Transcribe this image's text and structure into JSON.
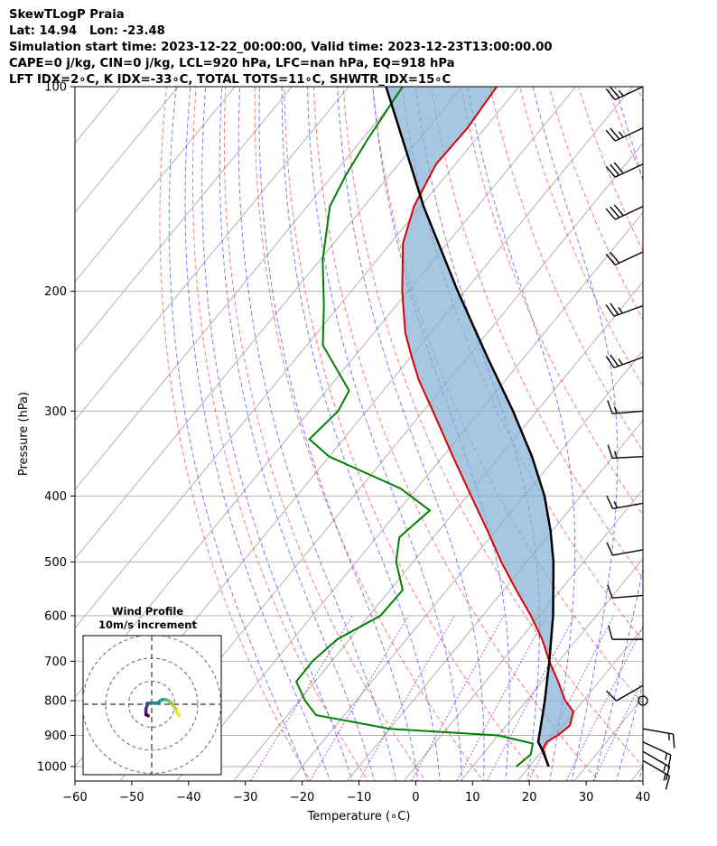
{
  "title": {
    "line1": "SkewTLogP Praia",
    "line2": "Lat: 14.94   Lon: -23.48",
    "line3": "Simulation start time: 2023-12-22_00:00:00, Valid time: 2023-12-23T13:00:00.00",
    "line4": "CAPE=0 j/kg, CIN=0 j/kg, LCL=920 hPa, LFC=nan hPa, EQ=918 hPa",
    "line5": "LFT IDX=2∘C, K IDX=-33∘C, TOTAL TOTS=11∘C, SHWTR_IDX=15∘C"
  },
  "colors": {
    "temperature": "#e00000",
    "dewpoint": "#008000",
    "parcel": "#000000",
    "cape_fill": "#7fafd4",
    "dry_adiabat": "#ff5555",
    "moist_adiabat": "#4455ff",
    "mixing_ratio": "#9933cc",
    "isotherm": "#aaaaaa"
  },
  "chart_data": {
    "type": "skewt",
    "title": "SkewTLogP Praia",
    "xlabel": "Temperature (∘C)",
    "ylabel": "Pressure (hPa)",
    "xlim": [
      -60,
      40
    ],
    "ylim": [
      1050,
      100
    ],
    "x_ticks": [
      "−60",
      "−50",
      "−40",
      "−30",
      "−20",
      "−10",
      "0",
      "10",
      "20",
      "30",
      "40"
    ],
    "x_tick_values": [
      -60,
      -50,
      -40,
      -30,
      -20,
      -10,
      0,
      10,
      20,
      30,
      40
    ],
    "y_ticks": [
      "100",
      "200",
      "300",
      "400",
      "500",
      "600",
      "700",
      "800",
      "900",
      "1000"
    ],
    "y_tick_values": [
      100,
      200,
      300,
      400,
      500,
      600,
      700,
      800,
      900,
      1000
    ],
    "temperature_profile": [
      {
        "p": 1000,
        "t": 23.4
      },
      {
        "p": 960,
        "t": 21.0
      },
      {
        "p": 940,
        "t": 19.8
      },
      {
        "p": 920,
        "t": 19.5
      },
      {
        "p": 900,
        "t": 20.5
      },
      {
        "p": 870,
        "t": 21.2
      },
      {
        "p": 830,
        "t": 19.8
      },
      {
        "p": 800,
        "t": 16.8
      },
      {
        "p": 750,
        "t": 12.8
      },
      {
        "p": 700,
        "t": 8.3
      },
      {
        "p": 650,
        "t": 3.9
      },
      {
        "p": 600,
        "t": -1.5
      },
      {
        "p": 550,
        "t": -7.8
      },
      {
        "p": 500,
        "t": -14.5
      },
      {
        "p": 450,
        "t": -21.4
      },
      {
        "p": 400,
        "t": -29.3
      },
      {
        "p": 350,
        "t": -38.2
      },
      {
        "p": 300,
        "t": -48.3
      },
      {
        "p": 270,
        "t": -55.3
      },
      {
        "p": 250,
        "t": -59.8
      },
      {
        "p": 230,
        "t": -64.5
      },
      {
        "p": 200,
        "t": -71.0
      },
      {
        "p": 170,
        "t": -77.8
      },
      {
        "p": 150,
        "t": -81.2
      },
      {
        "p": 130,
        "t": -83.4
      },
      {
        "p": 115,
        "t": -83.1
      },
      {
        "p": 100,
        "t": -83.9
      }
    ],
    "dewpoint_profile": [
      {
        "p": 1000,
        "t": 17.7
      },
      {
        "p": 960,
        "t": 18.5
      },
      {
        "p": 925,
        "t": 17.3
      },
      {
        "p": 900,
        "t": 10.0
      },
      {
        "p": 880,
        "t": -10.0
      },
      {
        "p": 840,
        "t": -25.0
      },
      {
        "p": 800,
        "t": -29.0
      },
      {
        "p": 750,
        "t": -33.3
      },
      {
        "p": 700,
        "t": -33.4
      },
      {
        "p": 650,
        "t": -32.2
      },
      {
        "p": 600,
        "t": -28.0
      },
      {
        "p": 550,
        "t": -27.8
      },
      {
        "p": 500,
        "t": -33.0
      },
      {
        "p": 460,
        "t": -36.0
      },
      {
        "p": 420,
        "t": -34.5
      },
      {
        "p": 390,
        "t": -42.8
      },
      {
        "p": 350,
        "t": -60.0
      },
      {
        "p": 330,
        "t": -66.0
      },
      {
        "p": 300,
        "t": -65.0
      },
      {
        "p": 280,
        "t": -66.0
      },
      {
        "p": 240,
        "t": -77.2
      },
      {
        "p": 210,
        "t": -82.7
      },
      {
        "p": 180,
        "t": -89.5
      },
      {
        "p": 150,
        "t": -96.0
      },
      {
        "p": 135,
        "t": -97.7
      },
      {
        "p": 120,
        "t": -99.0
      },
      {
        "p": 100,
        "t": -100.5
      }
    ],
    "parcel_profile": [
      {
        "p": 1000,
        "t": 23.4
      },
      {
        "p": 950,
        "t": 20.2
      },
      {
        "p": 920,
        "t": 18.0
      },
      {
        "p": 850,
        "t": 15.3
      },
      {
        "p": 800,
        "t": 13.2
      },
      {
        "p": 700,
        "t": 8.3
      },
      {
        "p": 600,
        "t": 2.4
      },
      {
        "p": 500,
        "t": -5.3
      },
      {
        "p": 450,
        "t": -10.3
      },
      {
        "p": 400,
        "t": -16.4
      },
      {
        "p": 350,
        "t": -24.3
      },
      {
        "p": 300,
        "t": -34.2
      },
      {
        "p": 250,
        "t": -46.5
      },
      {
        "p": 200,
        "t": -61.2
      },
      {
        "p": 150,
        "t": -79.5
      },
      {
        "p": 100,
        "t": -103.4
      }
    ],
    "wind_barbs": [
      {
        "p": 100,
        "speed_kt": 25,
        "dir_deg": 65
      },
      {
        "p": 115,
        "speed_kt": 25,
        "dir_deg": 65
      },
      {
        "p": 130,
        "speed_kt": 30,
        "dir_deg": 65
      },
      {
        "p": 150,
        "speed_kt": 30,
        "dir_deg": 65
      },
      {
        "p": 175,
        "speed_kt": 20,
        "dir_deg": 65
      },
      {
        "p": 210,
        "speed_kt": 25,
        "dir_deg": 70
      },
      {
        "p": 250,
        "speed_kt": 25,
        "dir_deg": 70
      },
      {
        "p": 300,
        "speed_kt": 15,
        "dir_deg": 85
      },
      {
        "p": 350,
        "speed_kt": 15,
        "dir_deg": 87
      },
      {
        "p": 410,
        "speed_kt": 15,
        "dir_deg": 80
      },
      {
        "p": 480,
        "speed_kt": 10,
        "dir_deg": 80
      },
      {
        "p": 560,
        "speed_kt": 10,
        "dir_deg": 85
      },
      {
        "p": 650,
        "speed_kt": 10,
        "dir_deg": 90
      },
      {
        "p": 760,
        "speed_kt": 10,
        "dir_deg": 60
      },
      {
        "p": 800,
        "speed_kt": 0,
        "dir_deg": 0
      },
      {
        "p": 880,
        "speed_kt": 15,
        "dir_deg": 280
      },
      {
        "p": 920,
        "speed_kt": 15,
        "dir_deg": 295
      },
      {
        "p": 950,
        "speed_kt": 15,
        "dir_deg": 300
      },
      {
        "p": 980,
        "speed_kt": 15,
        "dir_deg": 300
      }
    ],
    "hodograph": {
      "title": "Wind Profile",
      "subtitle": "10m/s increment",
      "rings_ms": [
        10,
        20,
        30
      ],
      "points": [
        {
          "u": 12.0,
          "v": -5.0
        },
        {
          "u": 11.0,
          "v": -3.5
        },
        {
          "u": 10.5,
          "v": -2.0
        },
        {
          "u": 9.5,
          "v": -1.0
        },
        {
          "u": 8.5,
          "v": 0.5
        },
        {
          "u": 7.5,
          "v": 1.5
        },
        {
          "u": 6.0,
          "v": 2.0
        },
        {
          "u": 4.5,
          "v": 2.0
        },
        {
          "u": 3.0,
          "v": 1.0
        },
        {
          "u": 3.0,
          "v": 0.5
        },
        {
          "u": 1.5,
          "v": 0.5
        },
        {
          "u": -1.0,
          "v": 0.5
        },
        {
          "u": -2.0,
          "v": 0.3
        },
        {
          "u": -2.0,
          "v": -0.5
        },
        {
          "u": -2.5,
          "v": -2.0
        },
        {
          "u": -2.5,
          "v": -3.0
        },
        {
          "u": -2.5,
          "v": -4.5
        },
        {
          "u": -1.5,
          "v": -5.0
        }
      ]
    }
  }
}
